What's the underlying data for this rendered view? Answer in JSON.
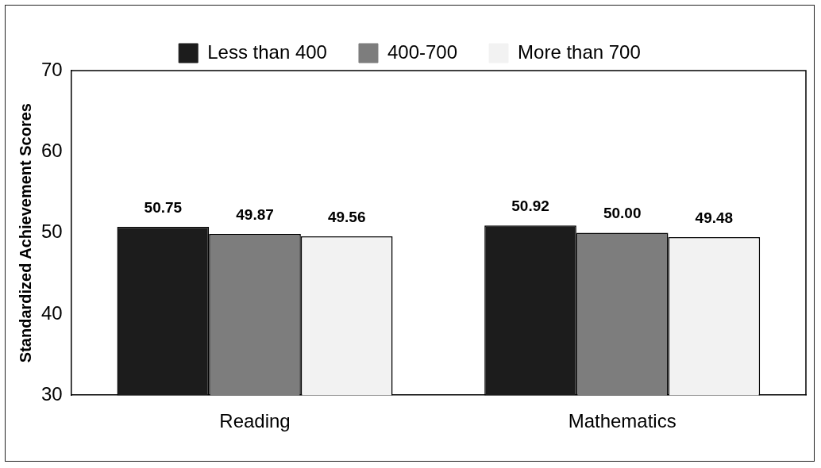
{
  "chart_data": {
    "type": "bar",
    "ylabel": "Standardized Achievement Scores",
    "categories": [
      "Reading",
      "Mathematics"
    ],
    "series": [
      {
        "name": "Less than 400",
        "color": "#1c1c1c",
        "values": [
          50.75,
          50.92
        ],
        "value_labels": [
          "50.75",
          "50.92"
        ]
      },
      {
        "name": "400-700",
        "color": "#7d7d7d",
        "values": [
          49.87,
          50.0
        ],
        "value_labels": [
          "49.87",
          "50.00"
        ]
      },
      {
        "name": "More than 700",
        "color": "#f2f2f2",
        "values": [
          49.56,
          49.48
        ],
        "value_labels": [
          "49.56",
          "49.48"
        ]
      }
    ],
    "ylim": [
      30,
      70
    ],
    "yticks": [
      30,
      40,
      50,
      60,
      70
    ],
    "grid": false,
    "legend": "top"
  }
}
